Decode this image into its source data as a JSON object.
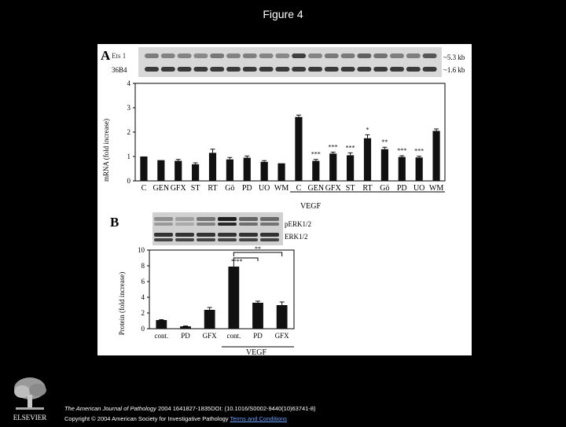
{
  "slide": {
    "title": "Figure 4"
  },
  "figure": {
    "panel_a_label": "A",
    "panel_b_label": "B",
    "blot_a": {
      "rows": [
        {
          "label": "Ets 1",
          "size": "~5.3 kb"
        },
        {
          "label": "36B4",
          "size": "~1.6 kb"
        }
      ]
    },
    "blot_b": {
      "rows": [
        {
          "label": "pERK1/2"
        },
        {
          "label": "ERK1/2"
        }
      ]
    },
    "group_label_a": "VEGF",
    "group_label_b": "VEGF"
  },
  "chart_data": [
    {
      "type": "bar",
      "panel": "A",
      "ylabel": "mRNA (fold increase)",
      "ylim": [
        0,
        4
      ],
      "yticks": [
        0,
        1,
        2,
        3,
        4
      ],
      "categories": [
        "C",
        "GEN",
        "GFX",
        "ST",
        "RT",
        "Gö",
        "PD",
        "UO",
        "WM",
        "C",
        "GEN",
        "GFX",
        "ST",
        "RT",
        "Gö",
        "PD",
        "UO",
        "WM"
      ],
      "values": [
        1.0,
        0.85,
        0.82,
        0.68,
        1.15,
        0.88,
        0.95,
        0.78,
        0.72,
        2.62,
        0.82,
        1.12,
        1.05,
        1.75,
        1.3,
        0.98,
        0.96,
        2.05
      ],
      "errors": [
        0,
        0,
        0.06,
        0.06,
        0.15,
        0.08,
        0.07,
        0.05,
        0,
        0.08,
        0.06,
        0.06,
        0.1,
        0.14,
        0.08,
        0.05,
        0.05,
        0.08
      ],
      "annotations": [
        "",
        "",
        "",
        "",
        "",
        "",
        "",
        "",
        "",
        "",
        "***",
        "***",
        "***",
        "*",
        "**",
        "***",
        "***",
        ""
      ],
      "group_label": "VEGF"
    },
    {
      "type": "bar",
      "panel": "B",
      "ylabel": "Protein (fold increase)",
      "ylim": [
        0,
        10
      ],
      "yticks": [
        0,
        2,
        4,
        6,
        8,
        10
      ],
      "categories": [
        "cont.",
        "PD",
        "GFX",
        "cont.",
        "PD",
        "GFX"
      ],
      "values": [
        1.1,
        0.3,
        2.4,
        7.9,
        3.3,
        3.0
      ],
      "errors": [
        0.05,
        0.05,
        0.3,
        0.8,
        0.2,
        0.4
      ],
      "annotations": [
        "**",
        "**"
      ],
      "group_label": "VEGF"
    }
  ],
  "footer": {
    "publisher": "ELSEVIER",
    "citation_journal": "The American Journal of Pathology",
    "citation_rest": " 2004 1641827-1835DOI: (10.1016/S0002-9440(10)63741-8)",
    "copyright": "Copyright © 2004 American Society for Investigative Pathology ",
    "terms_link": "Terms and Conditions"
  }
}
